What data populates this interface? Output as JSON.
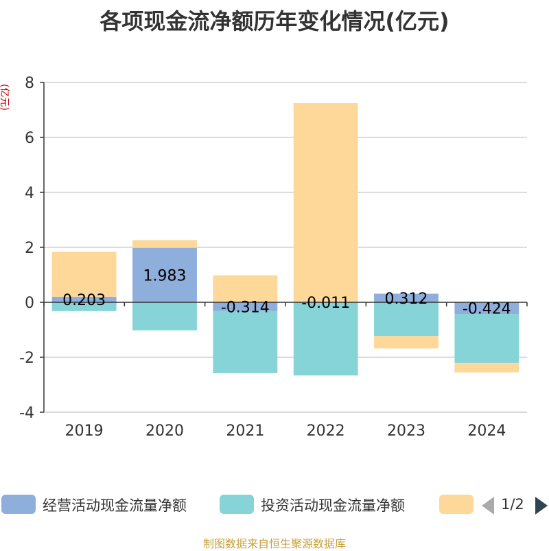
{
  "chart_data": {
    "type": "bar",
    "stacked": true,
    "title": "各项现金流净额历年变化情况(亿元)",
    "ylabel": "(亿元)",
    "categories": [
      "2019",
      "2020",
      "2021",
      "2022",
      "2023",
      "2024"
    ],
    "ylim": [
      -4,
      8
    ],
    "yticks": [
      -4,
      -2,
      0,
      2,
      4,
      6,
      8
    ],
    "grid": true,
    "series": [
      {
        "name": "经营活动现金流量净额",
        "color": "#8eaedb",
        "values": [
          0.203,
          1.983,
          -0.314,
          -0.011,
          0.312,
          -0.424
        ],
        "labels": [
          "0.203",
          "1.983",
          "-0.314",
          "-0.011",
          "0.312",
          "-0.424"
        ]
      },
      {
        "name": "投资活动现金流量净额",
        "color": "#86d4d8",
        "values": [
          -0.32,
          -1.02,
          -2.26,
          -2.65,
          -1.23,
          -1.78
        ]
      },
      {
        "name": "",
        "color": "#fdd899",
        "values": [
          1.63,
          0.28,
          0.98,
          7.25,
          -0.45,
          -0.35
        ]
      }
    ],
    "legend": {
      "position": "bottom",
      "page": "1/2"
    }
  },
  "source_note": "制图数据来自恒生聚源数据库"
}
